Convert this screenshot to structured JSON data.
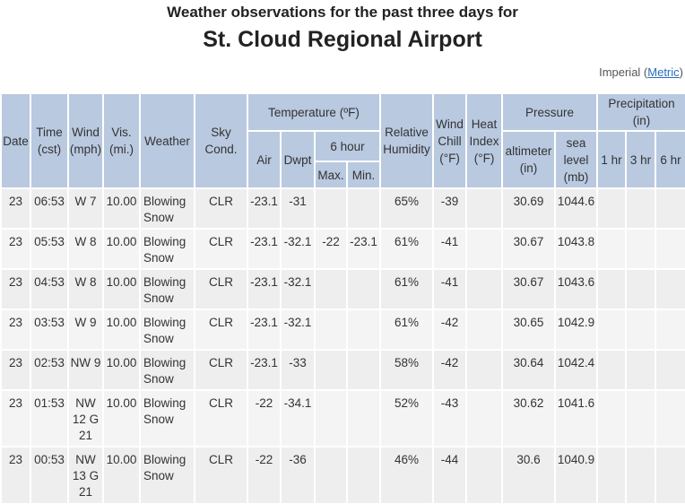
{
  "header": {
    "title": "Weather observations for the past three days for",
    "subtitle": "St. Cloud Regional Airport",
    "units": {
      "prefix": "Imperial (",
      "link": "Metric",
      "suffix": ")"
    }
  },
  "table": {
    "headers": [
      "Date",
      "Time (cst)",
      "Wind (mph)",
      "Vis. (mi.)",
      "Weather",
      "Sky Cond.",
      "Temperature (ºF)",
      "Relative Humidity",
      "Wind Chill (°F)",
      "Heat Index (°F)",
      "Pressure",
      "Precipitation (in)",
      "Air",
      "Dwpt",
      "6 hour",
      "altimeter (in)",
      "sea level (mb)",
      "1 hr",
      "3 hr",
      "6 hr",
      "Max.",
      "Min."
    ],
    "rows": [
      [
        "23",
        "06:53",
        "W 7",
        "10.00",
        "Blowing Snow",
        "CLR",
        "-23.1",
        "-31",
        null,
        null,
        "65%",
        "-39",
        null,
        "30.69",
        "1044.6",
        null,
        null,
        null
      ],
      [
        "23",
        "05:53",
        "W 8",
        "10.00",
        "Blowing Snow",
        "CLR",
        "-23.1",
        "-32.1",
        "-22",
        "-23.1",
        "61%",
        "-41",
        null,
        "30.67",
        "1043.8",
        null,
        null,
        null
      ],
      [
        "23",
        "04:53",
        "W 8",
        "10.00",
        "Blowing Snow",
        "CLR",
        "-23.1",
        "-32.1",
        null,
        null,
        "61%",
        "-41",
        null,
        "30.67",
        "1043.6",
        null,
        null,
        null
      ],
      [
        "23",
        "03:53",
        "W 9",
        "10.00",
        "Blowing Snow",
        "CLR",
        "-23.1",
        "-32.1",
        null,
        null,
        "61%",
        "-42",
        null,
        "30.65",
        "1042.9",
        null,
        null,
        null
      ],
      [
        "23",
        "02:53",
        "NW 9",
        "10.00",
        "Blowing Snow",
        "CLR",
        "-23.1",
        "-33",
        null,
        null,
        "58%",
        "-42",
        null,
        "30.64",
        "1042.4",
        null,
        null,
        null
      ],
      [
        "23",
        "01:53",
        "NW 12 G 21",
        "10.00",
        "Blowing Snow",
        "CLR",
        "-22",
        "-34.1",
        null,
        null,
        "52%",
        "-43",
        null,
        "30.62",
        "1041.6",
        null,
        null,
        null
      ],
      [
        "23",
        "00:53",
        "NW 13 G 21",
        "10.00",
        "Blowing Snow",
        "CLR",
        "-22",
        "-36",
        null,
        null,
        "46%",
        "-44",
        null,
        "30.6",
        "1040.9",
        null,
        null,
        null
      ]
    ]
  }
}
